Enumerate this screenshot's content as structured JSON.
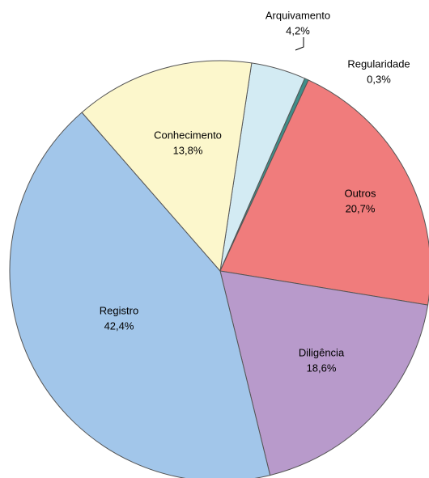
{
  "chart_data": {
    "type": "pie",
    "categories": [
      "Arquivamento",
      "Regularidade",
      "Outros",
      "Diligência",
      "Registro",
      "Conhecimento"
    ],
    "values": [
      4.2,
      0.3,
      20.7,
      18.6,
      42.4,
      13.8
    ],
    "value_labels": [
      "4,2%",
      "0,3%",
      "20,7%",
      "18,6%",
      "42,4%",
      "13,8%"
    ],
    "colors": [
      "#d3ebf3",
      "#3f8f8a",
      "#f07c7c",
      "#b89acb",
      "#a2c6ea",
      "#fcf7cc"
    ]
  }
}
